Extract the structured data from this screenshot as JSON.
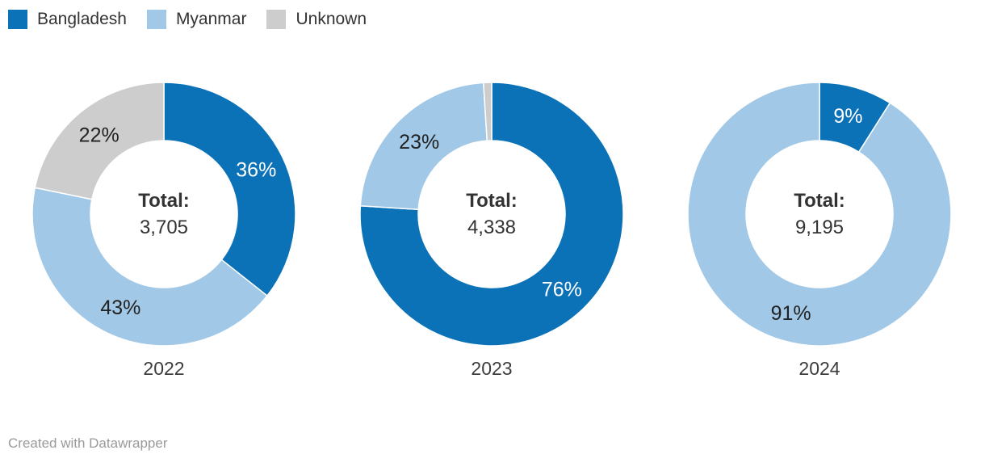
{
  "chart_data": {
    "type": "pie",
    "variant": "donut",
    "title": "",
    "legend_position": "top-left",
    "categories": [
      "Bangladesh",
      "Myanmar",
      "Unknown"
    ],
    "colors": {
      "Bangladesh": "#0b72b8",
      "Myanmar": "#a1c8e6",
      "Unknown": "#cdcdcd"
    },
    "center_label": "Total:",
    "donuts": [
      {
        "year": "2022",
        "total": "3,705",
        "slices": [
          {
            "name": "Bangladesh",
            "pct": 36,
            "label": "36%",
            "label_color": "#ffffff"
          },
          {
            "name": "Myanmar",
            "pct": 43,
            "label": "43%",
            "label_color": "#222222"
          },
          {
            "name": "Unknown",
            "pct": 22,
            "label": "22%",
            "label_color": "#222222"
          }
        ]
      },
      {
        "year": "2023",
        "total": "4,338",
        "slices": [
          {
            "name": "Bangladesh",
            "pct": 76,
            "label": "76%",
            "label_color": "#ffffff"
          },
          {
            "name": "Myanmar",
            "pct": 23,
            "label": "23%",
            "label_color": "#222222"
          },
          {
            "name": "Unknown",
            "pct": 1,
            "label": "",
            "label_color": ""
          }
        ]
      },
      {
        "year": "2024",
        "total": "9,195",
        "slices": [
          {
            "name": "Bangladesh",
            "pct": 9,
            "label": "9%",
            "label_color": "#ffffff"
          },
          {
            "name": "Myanmar",
            "pct": 91,
            "label": "91%",
            "label_color": "#222222"
          }
        ]
      }
    ]
  },
  "legend": {
    "items": [
      {
        "label": "Bangladesh",
        "color": "#0b72b8"
      },
      {
        "label": "Myanmar",
        "color": "#a1c8e6"
      },
      {
        "label": "Unknown",
        "color": "#cdcdcd"
      }
    ]
  },
  "footer": {
    "credit": "Created with Datawrapper"
  }
}
